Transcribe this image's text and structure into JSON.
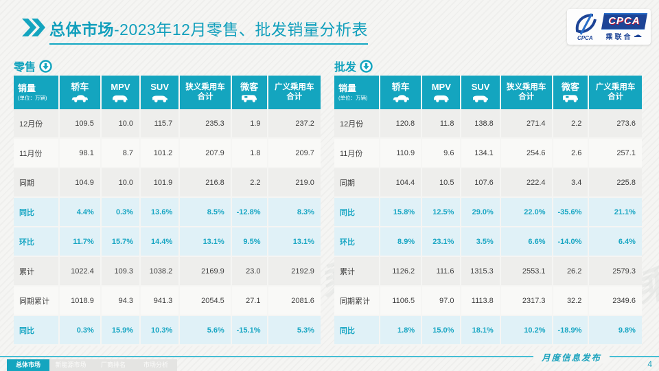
{
  "title": {
    "prefix": "总体市场",
    "rest": "-2023年12月零售、批发销量分析表"
  },
  "logo": {
    "plate": "CPCA",
    "sub": "乘联合"
  },
  "watermark": "CPCA 乘联合",
  "table_header": {
    "col0_title": "销量",
    "col0_sub": "(单位：万辆)",
    "cols": [
      {
        "label": "轿车",
        "line2": "",
        "icon": "sedan-car-icon"
      },
      {
        "label": "MPV",
        "line2": "",
        "icon": "mpv-car-icon"
      },
      {
        "label": "SUV",
        "line2": "",
        "icon": "suv-car-icon"
      },
      {
        "label": "狭义乘用车",
        "line2": "合计",
        "icon": ""
      },
      {
        "label": "微客",
        "line2": "",
        "icon": "van-icon"
      },
      {
        "label": "广义乘用车",
        "line2": "合计",
        "icon": ""
      }
    ]
  },
  "tables": [
    {
      "section_label": "零售",
      "rows": [
        {
          "label": "12月份",
          "style": "grey",
          "values": [
            "109.5",
            "10.0",
            "115.7",
            "235.3",
            "1.9",
            "237.2"
          ]
        },
        {
          "label": "11月份",
          "style": "white",
          "values": [
            "98.1",
            "8.7",
            "101.2",
            "207.9",
            "1.8",
            "209.7"
          ]
        },
        {
          "label": "同期",
          "style": "grey",
          "values": [
            "104.9",
            "10.0",
            "101.9",
            "216.8",
            "2.2",
            "219.0"
          ]
        },
        {
          "label": "同比",
          "style": "cyan",
          "values": [
            "4.4%",
            "0.3%",
            "13.6%",
            "8.5%",
            "-12.8%",
            "8.3%"
          ]
        },
        {
          "label": "环比",
          "style": "cyan",
          "values": [
            "11.7%",
            "15.7%",
            "14.4%",
            "13.1%",
            "9.5%",
            "13.1%"
          ]
        },
        {
          "label": "累计",
          "style": "grey",
          "values": [
            "1022.4",
            "109.3",
            "1038.2",
            "2169.9",
            "23.0",
            "2192.9"
          ]
        },
        {
          "label": "同期累计",
          "style": "white",
          "values": [
            "1018.9",
            "94.3",
            "941.3",
            "2054.5",
            "27.1",
            "2081.6"
          ]
        },
        {
          "label": "同比",
          "style": "cyan",
          "values": [
            "0.3%",
            "15.9%",
            "10.3%",
            "5.6%",
            "-15.1%",
            "5.3%"
          ]
        }
      ]
    },
    {
      "section_label": "批发",
      "rows": [
        {
          "label": "12月份",
          "style": "grey",
          "values": [
            "120.8",
            "11.8",
            "138.8",
            "271.4",
            "2.2",
            "273.6"
          ]
        },
        {
          "label": "11月份",
          "style": "white",
          "values": [
            "110.9",
            "9.6",
            "134.1",
            "254.6",
            "2.6",
            "257.1"
          ]
        },
        {
          "label": "同期",
          "style": "grey",
          "values": [
            "104.4",
            "10.5",
            "107.6",
            "222.4",
            "3.4",
            "225.8"
          ]
        },
        {
          "label": "同比",
          "style": "cyan",
          "values": [
            "15.8%",
            "12.5%",
            "29.0%",
            "22.0%",
            "-35.6%",
            "21.1%"
          ]
        },
        {
          "label": "环比",
          "style": "cyan",
          "values": [
            "8.9%",
            "23.1%",
            "3.5%",
            "6.6%",
            "-14.0%",
            "6.4%"
          ]
        },
        {
          "label": "累计",
          "style": "grey",
          "values": [
            "1126.2",
            "111.6",
            "1315.3",
            "2553.1",
            "26.2",
            "2579.3"
          ]
        },
        {
          "label": "同期累计",
          "style": "white",
          "values": [
            "1106.5",
            "97.0",
            "1113.8",
            "2317.3",
            "32.2",
            "2349.6"
          ]
        },
        {
          "label": "同比",
          "style": "cyan",
          "values": [
            "1.8%",
            "15.0%",
            "18.1%",
            "10.2%",
            "-18.9%",
            "9.8%"
          ]
        }
      ]
    }
  ],
  "footer": {
    "tabs": [
      {
        "label": "总体市场",
        "active": true
      },
      {
        "label": "新能源市场",
        "active": false
      },
      {
        "label": "厂商排名",
        "active": false
      },
      {
        "label": "市场分析",
        "active": false
      }
    ],
    "publication": "月度信息发布",
    "page_number": "4"
  },
  "colors": {
    "teal": "#14a5bf",
    "light_cyan_row": "#e0f1f7",
    "logo_blue": "#1d4496",
    "logo_red": "#c4122f"
  }
}
